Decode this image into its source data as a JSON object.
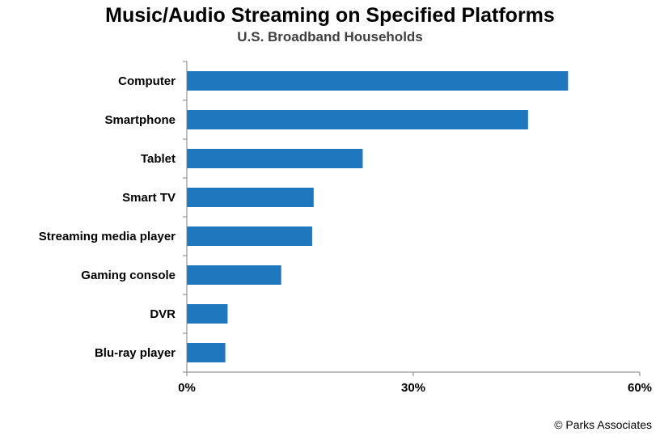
{
  "chart_data": {
    "type": "bar",
    "orientation": "horizontal",
    "title": "Music/Audio Streaming on Specified Platforms",
    "subtitle": "U.S. Broadband Households",
    "categories": [
      "Computer",
      "Smartphone",
      "Tablet",
      "Smart TV",
      "Streaming media player",
      "Gaming console",
      "DVR",
      "Blu-ray player"
    ],
    "values": [
      50.5,
      45.2,
      23.3,
      16.8,
      16.6,
      12.5,
      5.4,
      5.1
    ],
    "xlim": [
      0,
      60
    ],
    "xticks": [
      0,
      30,
      60
    ],
    "xtick_labels": [
      "0%",
      "30%",
      "60%"
    ],
    "grid": false,
    "bar_color": "#1F77BD"
  },
  "footer": {
    "copyright": "© Parks Associates"
  }
}
